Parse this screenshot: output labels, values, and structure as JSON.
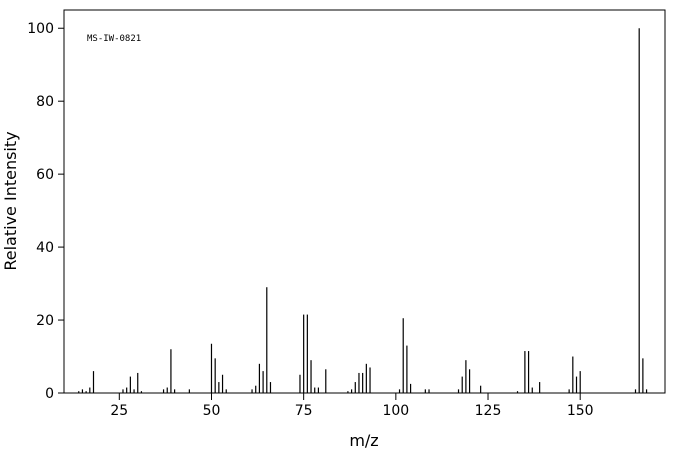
{
  "chart_data": {
    "type": "stem",
    "annotation": "MS-IW-0821",
    "xlabel": "m/z",
    "ylabel": "Relative Intensity",
    "x": [
      14,
      15,
      16,
      17,
      18,
      26,
      27,
      28,
      29,
      30,
      31,
      37,
      38,
      39,
      40,
      44,
      50,
      51,
      52,
      53,
      54,
      61,
      62,
      63,
      64,
      65,
      66,
      74,
      75,
      76,
      77,
      78,
      79,
      81,
      87,
      88,
      89,
      90,
      91,
      92,
      93,
      101,
      102,
      103,
      104,
      108,
      109,
      117,
      118,
      119,
      120,
      123,
      133,
      135,
      136,
      137,
      139,
      147,
      148,
      149,
      150,
      165,
      166,
      167,
      168
    ],
    "values": [
      0.5,
      1,
      0.5,
      1.5,
      6,
      1,
      1.5,
      4.5,
      1,
      5.5,
      0.5,
      1,
      1.5,
      12,
      1,
      1,
      13.5,
      9.5,
      3,
      5,
      1,
      1,
      2,
      8,
      6,
      29,
      3,
      5,
      21.5,
      21.5,
      9,
      1.5,
      1.5,
      6.5,
      0.5,
      1,
      3,
      5.5,
      5.5,
      8,
      7,
      1,
      20.5,
      13,
      2.5,
      1,
      1,
      1,
      4.5,
      9,
      6.5,
      2,
      0.5,
      11.5,
      11.5,
      1.5,
      3,
      1,
      10,
      4.5,
      6,
      1,
      100,
      9.5,
      1
    ],
    "color": "#000000",
    "xlim": [
      10,
      173
    ],
    "ylim": [
      0,
      105
    ],
    "xticks": [
      25,
      50,
      75,
      100,
      125,
      150
    ],
    "yticks": [
      0,
      20,
      40,
      60,
      80,
      100
    ]
  }
}
